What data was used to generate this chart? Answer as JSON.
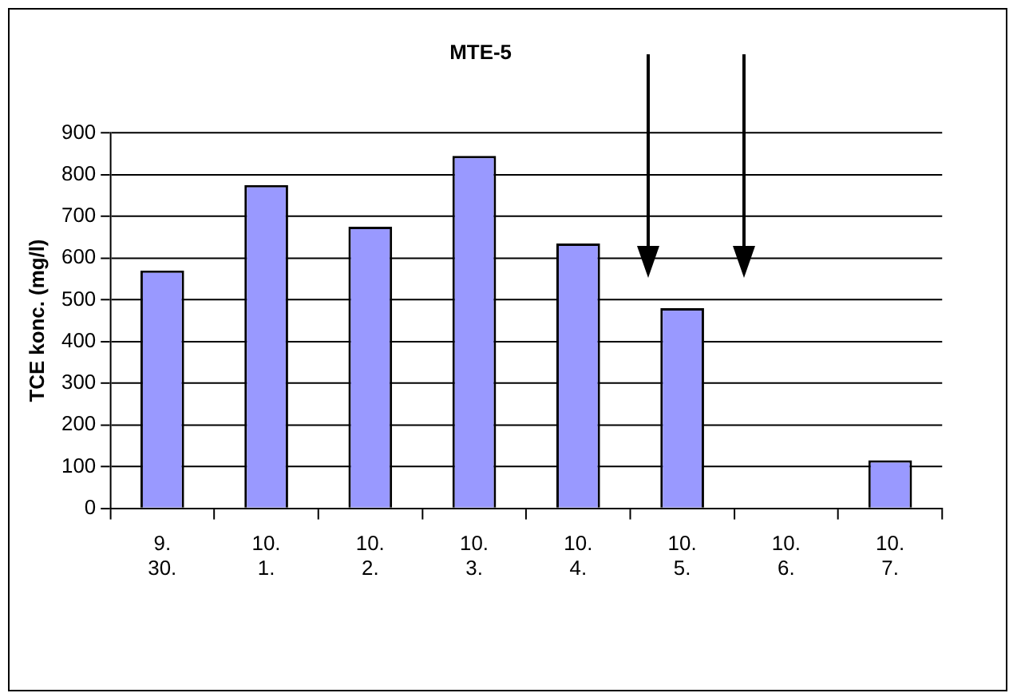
{
  "chart_data": {
    "type": "bar",
    "title": "MTE-5",
    "ylabel": "TCE konc. (mg/l)",
    "categories": [
      "9. 30.",
      "10. 1.",
      "10. 2.",
      "10. 3.",
      "10. 4.",
      "10. 5.",
      "10. 6.",
      "10. 7."
    ],
    "values": [
      570,
      775,
      675,
      845,
      635,
      480,
      null,
      115
    ],
    "color": "#9999ff",
    "ylim": [
      0,
      900
    ],
    "yticks": [
      0,
      100,
      200,
      300,
      400,
      500,
      600,
      700,
      800,
      900
    ],
    "grid": "y",
    "legend": false
  }
}
